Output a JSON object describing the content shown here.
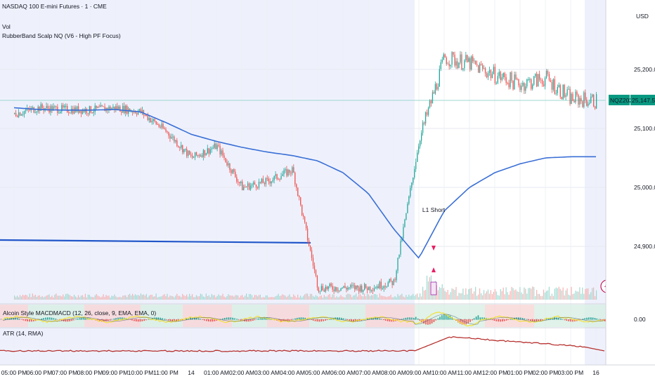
{
  "symbol": {
    "title": "NASDAQ 100 E-mini Futures · 1 · CME",
    "vol_label": "Vol",
    "strategy_label": "RubberBand Scalp NQ (V6 - High PF Focus)"
  },
  "price_axis": {
    "currency": "USD",
    "ticks": [
      "25,200.00",
      "25,100.00",
      "25,000.00",
      "24,900.00"
    ],
    "ticker_tag": "NQZ2025",
    "last_price": "25,147.50"
  },
  "panes": {
    "macd": {
      "label": "Alcoin Style MACDMACD (12, 26, close, 9, EMA, EMA, 0)",
      "zero_tick": "0.00"
    },
    "atr": {
      "label": "ATR (14, RMA)"
    }
  },
  "signals": {
    "short_label": "L1 Short"
  },
  "time_axis": {
    "labels": [
      "05:00 PM",
      "06:00 PM",
      "07:00 PM",
      "08:00 PM",
      "09:00 PM",
      "10:00 PM",
      "11:00 PM",
      "14",
      "01:00 AM",
      "02:00 AM",
      "03:00 AM",
      "04:00 AM",
      "05:00 AM",
      "06:00 AM",
      "07:00 AM",
      "08:00 AM",
      "09:00 AM",
      "10:00 AM",
      "11:00 AM",
      "12:00 PM",
      "01:00 PM",
      "02:00 PM",
      "03:00 PM",
      "16"
    ]
  },
  "colors": {
    "up": "#26a69a",
    "down": "#ef5350",
    "vwap": "#3a6fd6",
    "level": "#2156c9",
    "session_bg": "#eef1fc",
    "macd_line": "#f2e03a",
    "macd_signal": "#2c3e50",
    "atr_line": "#b7312f",
    "price_tag": "#089981"
  },
  "chart_data": {
    "type": "line",
    "title": "NASDAQ 100 E-mini Futures · 1 · CME",
    "xlabel": "",
    "ylabel": "USD",
    "x": [
      "05:00 PM",
      "06:00 PM",
      "07:00 PM",
      "08:00 PM",
      "09:00 PM",
      "10:00 PM",
      "11:00 PM",
      "14",
      "01:00 AM",
      "02:00 AM",
      "03:00 AM",
      "04:00 AM",
      "05:00 AM",
      "06:00 AM",
      "07:00 AM",
      "08:00 AM",
      "09:00 AM",
      "10:00 AM",
      "11:00 AM",
      "12:00 PM",
      "01:00 PM",
      "02:00 PM",
      "03:00 PM",
      "16"
    ],
    "ylim": [
      24830,
      25270
    ],
    "series": [
      {
        "values": [
          25125,
          25135,
          25132,
          25131,
          25135,
          25128,
          25095,
          25050,
          25070,
          25000,
          25010,
          25030,
          24830,
          24830,
          24830,
          24840,
          25080,
          25220,
          25210,
          25190,
          25175,
          25185,
          25150,
          25147
        ]
      },
      {
        "values": [
          25135,
          25132,
          25131,
          25131,
          25132,
          25128,
          25110,
          25090,
          25078,
          25068,
          25060,
          25054,
          25045,
          25025,
          24990,
          24930,
          24880,
          24960,
          25000,
          25025,
          25040,
          25050,
          25052,
          25052
        ]
      }
    ],
    "grid": true
  }
}
